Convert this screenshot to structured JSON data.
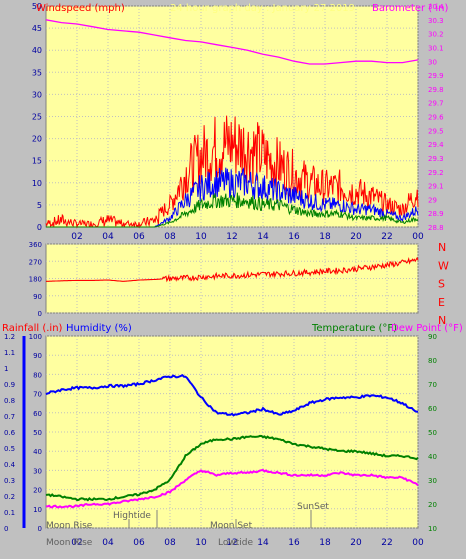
{
  "header": {
    "windspeed_label": "Windspeed (mph)",
    "graph_title": "24 hour graph day : January 27 2019",
    "barometer_label": "Barometer ( in)"
  },
  "colors": {
    "panel_bg": "#ffffa0",
    "chrome_bg": "#c0c0c0",
    "wind_gust": "#ff0000",
    "wind_speed": "#0000ff",
    "wind_avg": "#008000",
    "barometer": "#ff00ff",
    "direction": "#ff0000",
    "humidity": "#0000ff",
    "temperature": "#008000",
    "dew_point": "#ff00ff",
    "rain_axis": "#0000ff",
    "axis_text": "#0000a0"
  },
  "time_axis": {
    "labels": [
      "02",
      "04",
      "06",
      "08",
      "10",
      "12",
      "14",
      "16",
      "18",
      "20",
      "22",
      "00"
    ],
    "hours": [
      2,
      4,
      6,
      8,
      10,
      12,
      14,
      16,
      18,
      20,
      22,
      24
    ]
  },
  "chart_data": [
    {
      "type": "line",
      "title": "24 hour graph day : January 27 2019",
      "ylabel": "Windspeed (mph)",
      "ylim": [
        0,
        50
      ],
      "yticks": [
        0,
        5,
        10,
        15,
        20,
        25,
        30,
        35,
        40,
        45,
        50
      ],
      "y2label": "Barometer ( in)",
      "y2lim": [
        28.8,
        30.4
      ],
      "y2ticks": [
        "28.8",
        "28.9",
        "29",
        "29.1",
        "29.2",
        "29.3",
        "29.4",
        "29.5",
        "29.6",
        "29.7",
        "29.8",
        "29.9",
        "30",
        "30.1",
        "30.2",
        "30.3",
        "30.4"
      ],
      "x_hours": [
        0,
        1,
        2,
        3,
        4,
        5,
        6,
        7,
        8,
        9,
        10,
        11,
        12,
        13,
        14,
        15,
        16,
        17,
        18,
        19,
        20,
        21,
        22,
        23,
        24
      ],
      "series": [
        {
          "axis": "y",
          "style": "gust",
          "values": [
            1,
            2,
            1,
            1,
            2,
            1,
            1,
            2,
            5,
            12,
            16,
            18,
            19,
            18,
            16,
            14,
            12,
            10,
            9,
            9,
            8,
            7,
            5,
            4,
            8
          ]
        },
        {
          "axis": "y",
          "style": "speed",
          "values": [
            0,
            0,
            0,
            0,
            0,
            0,
            0,
            0,
            2,
            6,
            9,
            10,
            10,
            10,
            9,
            8,
            7,
            6,
            5,
            5,
            4,
            4,
            3,
            2,
            4
          ]
        },
        {
          "axis": "y",
          "style": "avg",
          "values": [
            0,
            0,
            0,
            0,
            0,
            0,
            0,
            0,
            1,
            3,
            5,
            6,
            6,
            6,
            5,
            5,
            4,
            3,
            3,
            3,
            2,
            2,
            2,
            1,
            2
          ]
        },
        {
          "axis": "y2",
          "style": "barometer",
          "values": [
            30.3,
            30.28,
            30.27,
            30.25,
            30.23,
            30.22,
            30.21,
            30.19,
            30.17,
            30.15,
            30.14,
            30.12,
            30.1,
            30.08,
            30.05,
            30.03,
            30.0,
            29.98,
            29.98,
            29.99,
            30.0,
            30.0,
            29.99,
            29.99,
            30.01
          ]
        }
      ]
    },
    {
      "type": "line",
      "ylim": [
        0,
        360
      ],
      "yticks": [
        0,
        90,
        180,
        270,
        360
      ],
      "direction_labels": [
        "N",
        "W",
        "S",
        "E",
        "N"
      ],
      "x_hours": [
        0,
        1,
        2,
        3,
        4,
        5,
        6,
        7,
        8,
        9,
        10,
        11,
        12,
        13,
        14,
        15,
        16,
        17,
        18,
        19,
        20,
        21,
        22,
        23,
        24
      ],
      "series": [
        {
          "style": "direction",
          "values": [
            165,
            168,
            170,
            170,
            172,
            165,
            172,
            175,
            180,
            182,
            188,
            192,
            195,
            198,
            202,
            205,
            208,
            212,
            218,
            222,
            230,
            240,
            250,
            262,
            278
          ]
        }
      ]
    },
    {
      "type": "line",
      "y_rain_label": "Rainfall (.in)",
      "y_humidity_label": "Humidity (%)",
      "y_temp_label": "Temperature (°F)",
      "y_dew_label": "Dew Point (°F)",
      "rain_ylim": [
        0,
        1.2
      ],
      "rain_ticks": [
        "0",
        "0.1",
        "0.2",
        "0.3",
        "0.4",
        "0.5",
        "0.6",
        "0.7",
        "0.8",
        "0.9",
        "1",
        "1.1",
        "1.2"
      ],
      "humidity_ylim": [
        0,
        100
      ],
      "humidity_ticks": [
        "0",
        "10",
        "20",
        "30",
        "40",
        "50",
        "60",
        "70",
        "80",
        "90",
        "100"
      ],
      "temp_ylim": [
        10,
        90
      ],
      "temp_ticks": [
        "10",
        "20",
        "30",
        "40",
        "50",
        "60",
        "70",
        "80",
        "90"
      ],
      "x_hours": [
        0,
        1,
        2,
        3,
        4,
        5,
        6,
        7,
        8,
        9,
        10,
        11,
        12,
        13,
        14,
        15,
        16,
        17,
        18,
        19,
        20,
        21,
        22,
        23,
        24
      ],
      "series": [
        {
          "axis": "humidity",
          "style": "humidity",
          "values": [
            70,
            72,
            73,
            73,
            74,
            74,
            75,
            77,
            79,
            79,
            68,
            60,
            59,
            60,
            62,
            59,
            61,
            65,
            67,
            68,
            68,
            69,
            68,
            65,
            60
          ]
        },
        {
          "axis": "temp",
          "style": "temperature",
          "values": [
            24,
            23,
            22,
            22,
            22,
            23,
            24,
            26,
            30,
            40,
            45,
            47,
            47,
            48,
            48,
            47,
            45,
            44,
            43,
            42,
            42,
            41,
            40,
            40,
            39
          ]
        },
        {
          "axis": "temp",
          "style": "dew",
          "values": [
            19,
            19,
            19,
            20,
            20,
            21,
            22,
            23,
            25,
            30,
            34,
            32,
            33,
            33,
            34,
            33,
            32,
            32,
            32,
            33,
            32,
            32,
            31,
            31,
            28
          ]
        }
      ]
    }
  ],
  "astronomy": {
    "moon_rise_top": "Moon Rise",
    "moon_rise_bottom": "Moon Rise",
    "hightide": "Hightide",
    "moon_set": "Moon Set",
    "lowtide": "Lowtide",
    "sunset": "SunSet"
  }
}
